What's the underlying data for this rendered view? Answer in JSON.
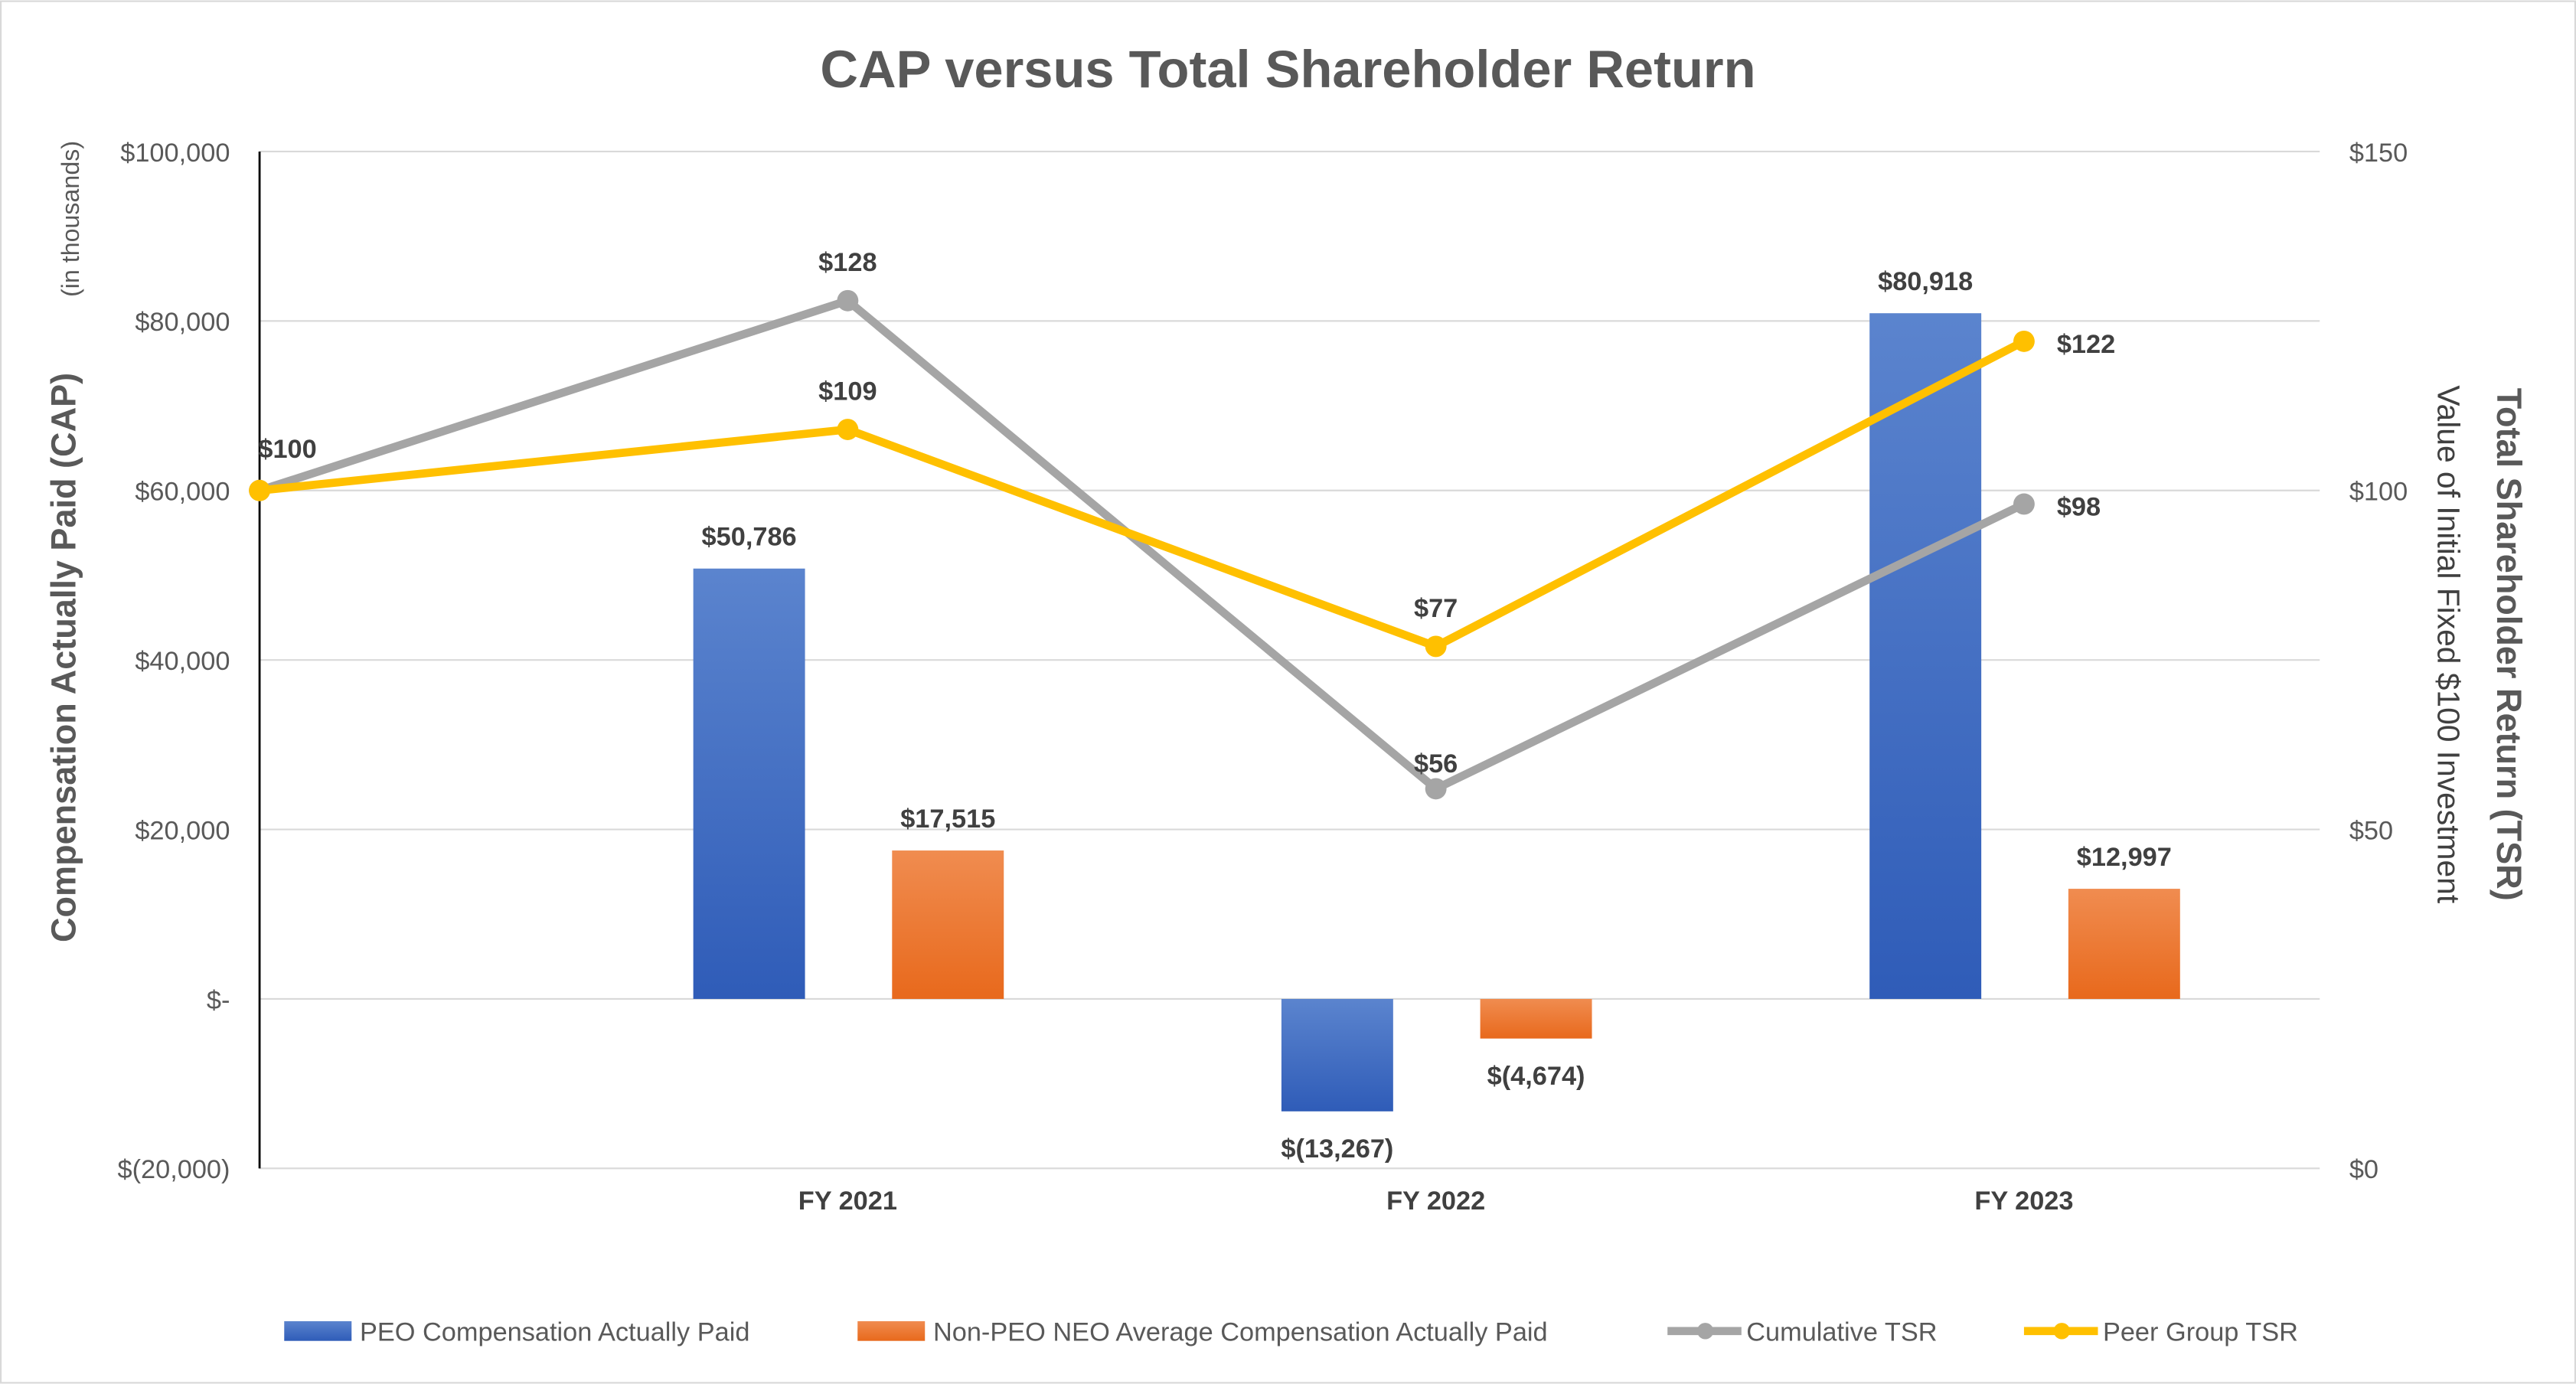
{
  "chart_data": {
    "type": "bar+line",
    "title": "CAP versus Total Shareholder Return",
    "ylabel": "Compensation Actually Paid (CAP)",
    "ylabel_note": "(in thousands)",
    "y2label": "Total Shareholder Return (TSR)",
    "y2label_sub": "Value of Initial Fixed $100 Investment",
    "ylim": [
      -20000,
      100000
    ],
    "y2lim": [
      0,
      150
    ],
    "yticks": [
      {
        "v": 100000,
        "label": "$100,000"
      },
      {
        "v": 80000,
        "label": "$80,000"
      },
      {
        "v": 60000,
        "label": "$60,000"
      },
      {
        "v": 40000,
        "label": "$40,000"
      },
      {
        "v": 20000,
        "label": "$20,000"
      },
      {
        "v": 0,
        "label": "$-"
      },
      {
        "v": -20000,
        "label": "$(20,000)"
      }
    ],
    "y2ticks": [
      {
        "v": 150,
        "label": "$150"
      },
      {
        "v": 100,
        "label": "$100"
      },
      {
        "v": 50,
        "label": "$50"
      },
      {
        "v": 0,
        "label": "$0"
      }
    ],
    "categories": [
      "",
      "FY 2021",
      "FY 2022",
      "FY 2023"
    ],
    "grid": true,
    "legend_position": "bottom",
    "series": [
      {
        "name": "PEO Compensation Actually Paid",
        "kind": "bar",
        "axis": "left",
        "color": "#4472C4",
        "values": [
          null,
          50786,
          -13267,
          80918
        ],
        "labels": [
          null,
          "$50,786",
          "$(13,267)",
          "$80,918"
        ]
      },
      {
        "name": "Non-PEO NEO Average Compensation Actually Paid",
        "kind": "bar",
        "axis": "left",
        "color": "#ED7D31",
        "values": [
          null,
          17515,
          -4674,
          12997
        ],
        "labels": [
          null,
          "$17,515",
          "$(4,674)",
          "$12,997"
        ]
      },
      {
        "name": "Cumulative TSR",
        "kind": "line",
        "axis": "right",
        "color": "#A5A5A5",
        "values": [
          100,
          128,
          56,
          98
        ],
        "labels": [
          null,
          "$128",
          "$56",
          "$98"
        ]
      },
      {
        "name": "Peer Group TSR",
        "kind": "line",
        "axis": "right",
        "color": "#FFC000",
        "values": [
          100,
          109,
          77,
          122
        ],
        "labels": [
          "$100",
          "$109",
          "$77",
          "$122"
        ]
      }
    ]
  }
}
